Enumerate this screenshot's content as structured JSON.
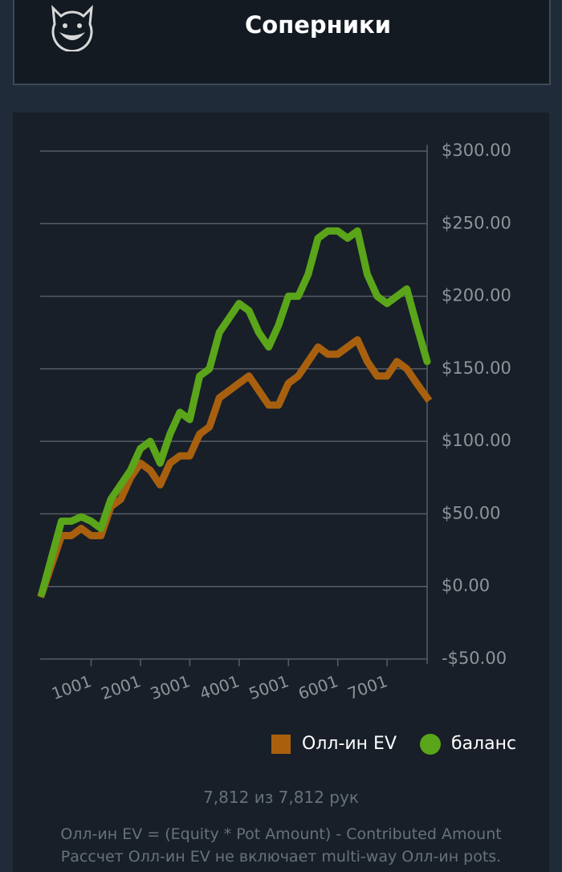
{
  "header": {
    "title": "Соперники"
  },
  "chart_data": {
    "type": "line",
    "x": [
      0,
      200,
      400,
      600,
      800,
      1000,
      1200,
      1400,
      1600,
      1800,
      2000,
      2200,
      2400,
      2600,
      2800,
      3000,
      3200,
      3400,
      3600,
      3800,
      4000,
      4200,
      4400,
      4600,
      4800,
      5000,
      5200,
      5400,
      5600,
      5800,
      6000,
      6200,
      6400,
      6600,
      6800,
      7000,
      7200,
      7400,
      7600,
      7812
    ],
    "series": [
      {
        "name": "Олл-ин EV",
        "color": "#a8600f",
        "marker": "square",
        "values": [
          -5,
          15,
          35,
          35,
          40,
          35,
          35,
          55,
          60,
          75,
          85,
          80,
          70,
          85,
          90,
          90,
          105,
          110,
          130,
          135,
          140,
          145,
          135,
          125,
          125,
          140,
          145,
          155,
          165,
          160,
          160,
          165,
          170,
          155,
          145,
          145,
          155,
          150,
          140,
          130
        ]
      },
      {
        "name": "баланс",
        "color": "#5aa51a",
        "marker": "circle",
        "values": [
          -5,
          20,
          45,
          45,
          48,
          45,
          40,
          60,
          70,
          80,
          95,
          100,
          85,
          105,
          120,
          115,
          145,
          150,
          175,
          185,
          195,
          190,
          175,
          165,
          180,
          200,
          200,
          215,
          240,
          245,
          245,
          240,
          245,
          215,
          200,
          195,
          200,
          205,
          180,
          155
        ]
      }
    ],
    "xlim": [
      0,
      7812
    ],
    "xticks": [
      1001,
      2001,
      3001,
      4001,
      5001,
      6001,
      7001
    ],
    "ylim": [
      -50,
      300
    ],
    "yticks": [
      {
        "value": -50,
        "label": "-$50.00"
      },
      {
        "value": 0,
        "label": "$0.00"
      },
      {
        "value": 50,
        "label": "$50.00"
      },
      {
        "value": 100,
        "label": "$100.00"
      },
      {
        "value": 150,
        "label": "$150.00"
      },
      {
        "value": 200,
        "label": "$200.00"
      },
      {
        "value": 250,
        "label": "$250.00"
      },
      {
        "value": 300,
        "label": "$300.00"
      }
    ],
    "grid": true
  },
  "footer": {
    "count": "7,812 из 7,812 рук",
    "notes": [
      "Олл-ин EV = (Equity * Pot Amount) - Contributed Amount",
      "Рассчет Олл-ин EV не включает multi-way Олл-ин pots."
    ]
  }
}
